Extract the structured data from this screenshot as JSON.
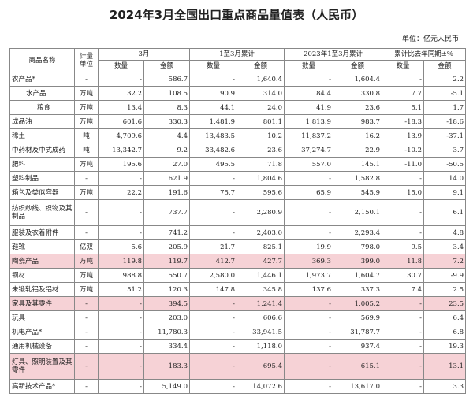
{
  "title": "2024年3月全国出口重点商品量值表（人民币）",
  "unit_note": "单位：亿元人民币",
  "headers": {
    "name": "商品名称",
    "unit": "计量单位",
    "groups": [
      "3月",
      "1至3月累计",
      "2023年1至3月累计",
      "累计比去年同期±%"
    ],
    "sub": [
      "数量",
      "金额",
      "数量",
      "金额",
      "数量",
      "金额",
      "数量",
      "金额"
    ]
  },
  "highlight_color": "#f6d2d6",
  "rows": [
    {
      "name": "农产品*",
      "unit": "-",
      "cells": [
        "-",
        "586.7",
        "-",
        "1,640.4",
        "-",
        "1,604.4",
        "-",
        "2.2"
      ],
      "indent": 0,
      "tall": false,
      "hl": false
    },
    {
      "name": "水产品",
      "unit": "万吨",
      "cells": [
        "32.2",
        "108.5",
        "90.9",
        "314.0",
        "84.4",
        "330.8",
        "7.7",
        "-5.1"
      ],
      "indent": 1,
      "tall": false,
      "hl": false
    },
    {
      "name": "粮食",
      "unit": "万吨",
      "cells": [
        "13.4",
        "8.3",
        "44.1",
        "24.0",
        "41.9",
        "23.6",
        "5.1",
        "1.7"
      ],
      "indent": 2,
      "tall": false,
      "hl": false
    },
    {
      "name": "成品油",
      "unit": "万吨",
      "cells": [
        "601.6",
        "330.3",
        "1,481.9",
        "801.1",
        "1,813.9",
        "983.7",
        "-18.3",
        "-18.6"
      ],
      "indent": 0,
      "tall": false,
      "hl": false
    },
    {
      "name": "稀土",
      "unit": "吨",
      "cells": [
        "4,709.6",
        "4.4",
        "13,483.5",
        "10.2",
        "11,837.2",
        "16.2",
        "13.9",
        "-37.1"
      ],
      "indent": 0,
      "tall": false,
      "hl": false
    },
    {
      "name": "中药材及中式成药",
      "unit": "吨",
      "cells": [
        "13,342.7",
        "9.2",
        "33,482.6",
        "23.6",
        "37,274.7",
        "22.9",
        "-10.2",
        "3.7"
      ],
      "indent": 0,
      "tall": false,
      "hl": false
    },
    {
      "name": "肥料",
      "unit": "万吨",
      "cells": [
        "195.6",
        "27.0",
        "495.5",
        "71.8",
        "557.0",
        "145.1",
        "-11.0",
        "-50.5"
      ],
      "indent": 0,
      "tall": false,
      "hl": false
    },
    {
      "name": "塑料制品",
      "unit": "-",
      "cells": [
        "-",
        "621.9",
        "-",
        "1,804.6",
        "-",
        "1,582.8",
        "-",
        "14.0"
      ],
      "indent": 0,
      "tall": false,
      "hl": false
    },
    {
      "name": "箱包及类似容器",
      "unit": "万吨",
      "cells": [
        "22.2",
        "191.6",
        "75.7",
        "595.6",
        "65.9",
        "545.9",
        "15.0",
        "9.1"
      ],
      "indent": 0,
      "tall": false,
      "hl": false
    },
    {
      "name": "纺织纱线、织物及其制品",
      "unit": "-",
      "cells": [
        "-",
        "737.7",
        "-",
        "2,280.9",
        "-",
        "2,150.1",
        "-",
        "6.1"
      ],
      "indent": 0,
      "tall": true,
      "hl": false
    },
    {
      "name": "服装及衣着附件",
      "unit": "-",
      "cells": [
        "-",
        "741.2",
        "-",
        "2,403.0",
        "-",
        "2,293.4",
        "-",
        "4.8"
      ],
      "indent": 0,
      "tall": false,
      "hl": false
    },
    {
      "name": "鞋靴",
      "unit": "亿双",
      "cells": [
        "5.6",
        "205.9",
        "21.7",
        "825.1",
        "19.9",
        "798.0",
        "9.5",
        "3.4"
      ],
      "indent": 0,
      "tall": false,
      "hl": false
    },
    {
      "name": "陶瓷产品",
      "unit": "万吨",
      "cells": [
        "119.8",
        "119.7",
        "412.7",
        "427.7",
        "369.3",
        "399.0",
        "11.8",
        "7.2"
      ],
      "indent": 0,
      "tall": false,
      "hl": true
    },
    {
      "name": "钢材",
      "unit": "万吨",
      "cells": [
        "988.8",
        "550.7",
        "2,580.0",
        "1,446.1",
        "1,973.7",
        "1,604.7",
        "30.7",
        "-9.9"
      ],
      "indent": 0,
      "tall": false,
      "hl": false
    },
    {
      "name": "未锻轧铝及铝材",
      "unit": "万吨",
      "cells": [
        "51.2",
        "120.3",
        "147.8",
        "345.8",
        "137.6",
        "337.3",
        "7.4",
        "2.5"
      ],
      "indent": 0,
      "tall": false,
      "hl": false
    },
    {
      "name": "家具及其零件",
      "unit": "-",
      "cells": [
        "-",
        "394.5",
        "-",
        "1,241.4",
        "-",
        "1,005.2",
        "-",
        "23.5"
      ],
      "indent": 0,
      "tall": false,
      "hl": true
    },
    {
      "name": "玩具",
      "unit": "-",
      "cells": [
        "-",
        "203.0",
        "-",
        "606.6",
        "-",
        "569.9",
        "-",
        "6.4"
      ],
      "indent": 0,
      "tall": false,
      "hl": false
    },
    {
      "name": "机电产品*",
      "unit": "-",
      "cells": [
        "-",
        "11,780.3",
        "-",
        "33,941.5",
        "-",
        "31,787.7",
        "-",
        "6.8"
      ],
      "indent": 0,
      "tall": false,
      "hl": false
    },
    {
      "name": "通用机械设备",
      "unit": "-",
      "cells": [
        "-",
        "334.4",
        "-",
        "1,118.0",
        "-",
        "937.4",
        "-",
        "19.3"
      ],
      "indent": 0,
      "tall": false,
      "hl": false
    },
    {
      "name": "灯具、照明装置及其零件",
      "unit": "-",
      "cells": [
        "-",
        "183.3",
        "-",
        "695.4",
        "-",
        "615.1",
        "-",
        "13.1"
      ],
      "indent": 0,
      "tall": true,
      "hl": true
    },
    {
      "name": "高新技术产品*",
      "unit": "-",
      "cells": [
        "-",
        "5,149.0",
        "-",
        "14,072.6",
        "-",
        "13,617.0",
        "-",
        "3.3"
      ],
      "indent": 0,
      "tall": false,
      "hl": false
    }
  ]
}
